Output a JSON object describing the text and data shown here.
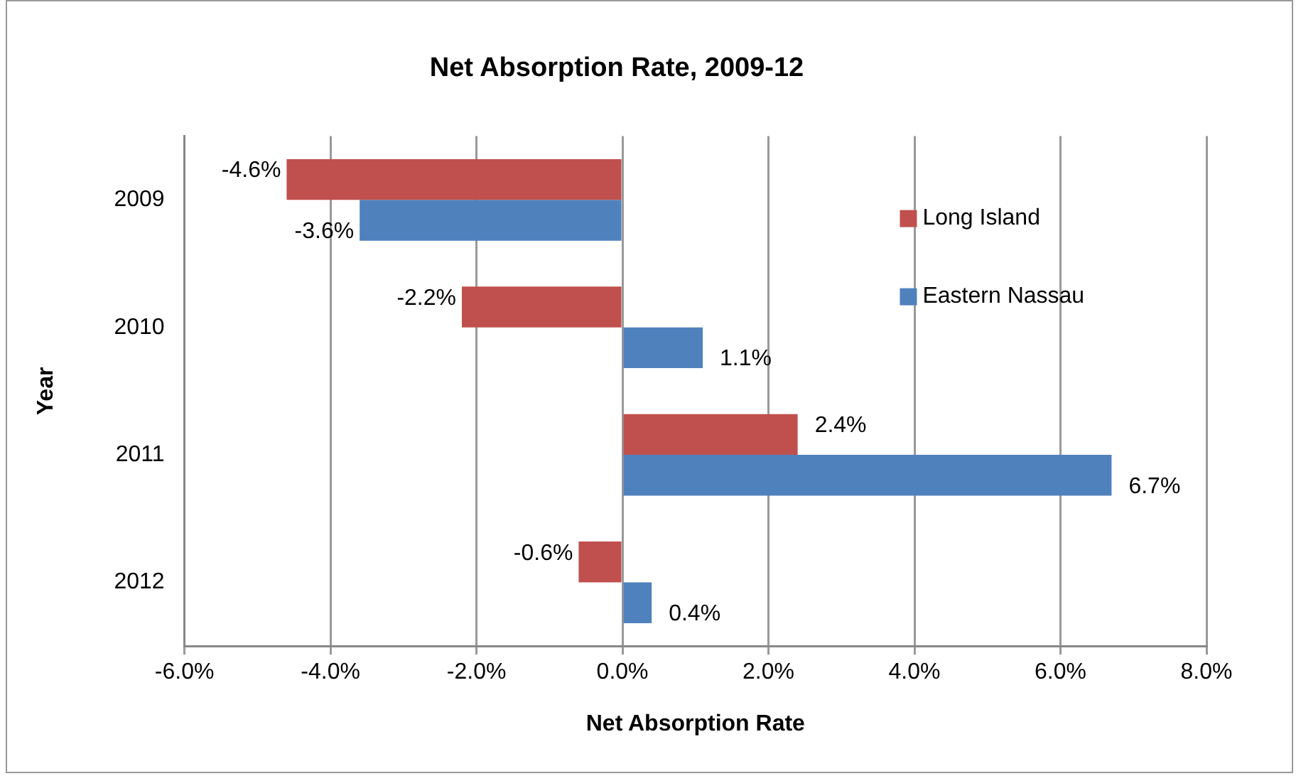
{
  "chart_data": {
    "type": "bar",
    "orientation": "horizontal",
    "title": "Net Absorption Rate, 2009-12",
    "xlabel": "Net Absorption Rate",
    "ylabel": "Year",
    "categories": [
      "2009",
      "2010",
      "2011",
      "2012"
    ],
    "series": [
      {
        "name": "Long Island",
        "color": "#c0504d",
        "values": [
          -4.6,
          -2.2,
          2.4,
          -0.6
        ],
        "value_labels": [
          "-4.6%",
          "-2.2%",
          "2.4%",
          "-0.6%"
        ]
      },
      {
        "name": "Eastern Nassau",
        "color": "#4f81bd",
        "values": [
          -3.6,
          1.1,
          6.7,
          0.4
        ],
        "value_labels": [
          "-3.6%",
          "1.1%",
          "6.7%",
          "0.4%"
        ]
      }
    ],
    "xlim": [
      -6,
      8
    ],
    "xticks": [
      {
        "value": -6,
        "label": "-6.0%"
      },
      {
        "value": -4,
        "label": "-4.0%"
      },
      {
        "value": -2,
        "label": "-2.0%"
      },
      {
        "value": 0,
        "label": "0.0%"
      },
      {
        "value": 2,
        "label": "2.0%"
      },
      {
        "value": 4,
        "label": "4.0%"
      },
      {
        "value": 6,
        "label": "6.0%"
      },
      {
        "value": 8,
        "label": "8.0%"
      }
    ],
    "grid": "x",
    "legend": "top right"
  }
}
